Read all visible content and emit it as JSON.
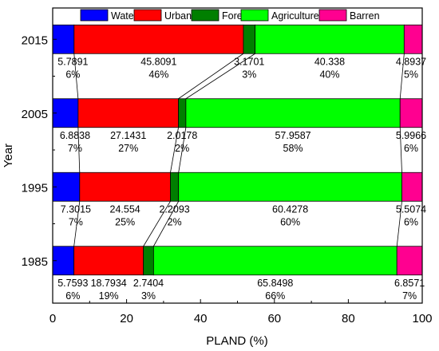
{
  "chart_data": {
    "type": "bar",
    "orientation": "horizontal",
    "stacked": true,
    "title": "",
    "xlabel": "PLAND (%)",
    "ylabel": "Year",
    "xlim": [
      0,
      100
    ],
    "xticks": [
      "0",
      "20",
      "40",
      "60",
      "80",
      "100"
    ],
    "grid": false,
    "legend_position": "top",
    "categories": [
      "2015",
      "2005",
      "1995",
      "1985"
    ],
    "series": [
      {
        "name": "Water",
        "color": "#0000ff",
        "values": [
          5.7891,
          6.8838,
          7.3015,
          5.7593
        ],
        "value_labels": [
          "5.7891",
          "6.8838",
          "7.3015",
          "5.7593"
        ],
        "percent_labels": [
          "6%",
          "7%",
          "7%",
          "6%"
        ]
      },
      {
        "name": "Urban",
        "color": "#ff0000",
        "values": [
          45.8091,
          27.1431,
          24.554,
          18.7934
        ],
        "value_labels": [
          "45.8091",
          "27.1431",
          "24.554",
          "18.7934"
        ],
        "percent_labels": [
          "46%",
          "27%",
          "25%",
          "19%"
        ]
      },
      {
        "name": "Forest",
        "color": "#007f00",
        "values": [
          3.1701,
          2.0178,
          2.2093,
          2.7404
        ],
        "value_labels": [
          "3.1701",
          "2.0178",
          "2.2093",
          "2.7404"
        ],
        "percent_labels": [
          "3%",
          "2%",
          "2%",
          "3%"
        ]
      },
      {
        "name": "Agriculture",
        "color": "#00ff00",
        "values": [
          40.338,
          57.9587,
          60.4278,
          65.8498
        ],
        "value_labels": [
          "40.338",
          "57.9587",
          "60.4278",
          "65.8498"
        ],
        "percent_labels": [
          "40%",
          "58%",
          "60%",
          "66%"
        ]
      },
      {
        "name": "Barren",
        "color": "#ff0090",
        "values": [
          4.8937,
          5.9966,
          5.5074,
          6.8571
        ],
        "value_labels": [
          "4.8937",
          "5.9966",
          "5.5074",
          "6.8571"
        ],
        "percent_labels": [
          "5%",
          "6%",
          "6%",
          "7%"
        ]
      }
    ]
  }
}
